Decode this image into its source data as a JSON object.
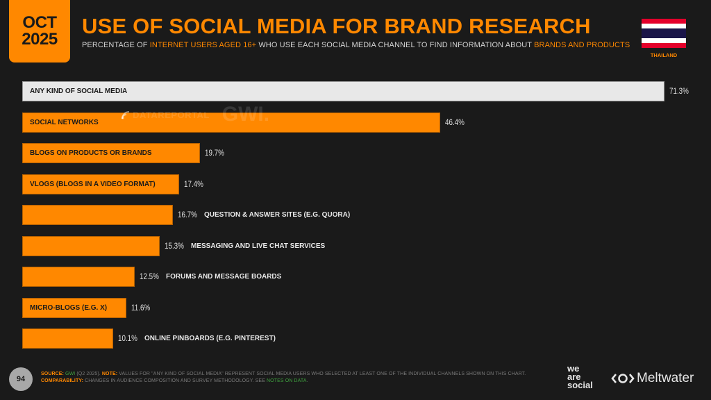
{
  "header": {
    "date_month": "OCT",
    "date_year": "2025",
    "title": "USE OF SOCIAL MEDIA FOR BRAND RESEARCH",
    "subtitle_parts": [
      "PERCENTAGE OF ",
      "INTERNET USERS AGED 16+",
      " WHO USE EACH SOCIAL MEDIA CHANNEL TO FIND INFORMATION ABOUT ",
      "BRANDS AND PRODUCTS"
    ],
    "country": "THAILAND",
    "flag_colors": [
      "#e4002b",
      "#ffffff",
      "#1a1548",
      "#ffffff",
      "#e4002b"
    ]
  },
  "watermark": {
    "left": "DATAREPORTAL",
    "right": "GWI."
  },
  "chart_data": {
    "type": "bar",
    "orientation": "horizontal",
    "title": "USE OF SOCIAL MEDIA FOR BRAND RESEARCH",
    "subtitle": "PERCENTAGE OF INTERNET USERS AGED 16+ WHO USE EACH SOCIAL MEDIA CHANNEL TO FIND INFORMATION ABOUT BRANDS AND PRODUCTS",
    "categories": [
      "ANY KIND OF SOCIAL MEDIA",
      "SOCIAL NETWORKS",
      "BLOGS ON PRODUCTS OR BRANDS",
      "VLOGS (BLOGS IN A VIDEO FORMAT)",
      "QUESTION & ANSWER SITES (E.G. QUORA)",
      "MESSAGING AND LIVE CHAT SERVICES",
      "FORUMS AND MESSAGE BOARDS",
      "MICRO-BLOGS (E.G. X)",
      "ONLINE PINBOARDS (E.G. PINTEREST)"
    ],
    "values": [
      71.3,
      46.4,
      19.7,
      17.4,
      16.7,
      15.3,
      12.5,
      11.6,
      10.1
    ],
    "value_labels": [
      "71.3%",
      "46.4%",
      "19.7%",
      "17.4%",
      "16.7%",
      "15.3%",
      "12.5%",
      "11.6%",
      "10.1%"
    ],
    "label_inside": [
      true,
      true,
      true,
      true,
      false,
      false,
      false,
      true,
      false
    ],
    "colors": {
      "total": "#e8e8e8",
      "channel": "#ff8800"
    },
    "xlabel": "",
    "ylabel": "",
    "xlim": [
      0,
      71.3
    ],
    "grid": false,
    "legend": null
  },
  "footer": {
    "page": "94",
    "source_key": "SOURCE:",
    "source_val": "GWI",
    "source_rest": " (Q2 2025). ",
    "note_key": "NOTE:",
    "note_val": " VALUES FOR \"ANY KIND OF SOCIAL MEDIA\" REPRESENT SOCIAL MEDIA USERS WHO SELECTED AT LEAST ONE OF THE INDIVIDUAL CHANNELS SHOWN ON THIS CHART.",
    "comp_key": "COMPARABILITY:",
    "comp_val": " CHANGES IN AUDIENCE COMPOSITION AND SURVEY METHODOLOGY. SEE ",
    "comp_link": "NOTES ON DATA",
    "comp_end": ".",
    "brand1": [
      "we",
      "are",
      "social"
    ],
    "brand2": "Meltwater"
  }
}
